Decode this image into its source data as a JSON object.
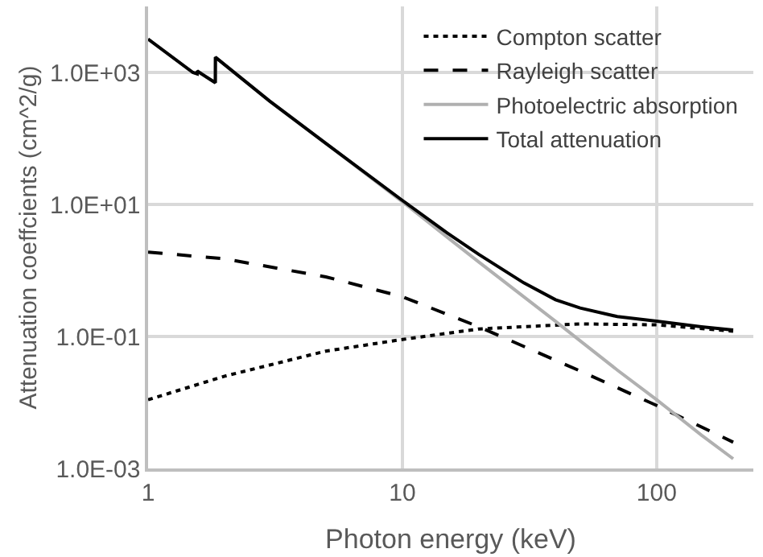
{
  "chart_data": {
    "type": "line",
    "xlabel": "Photon energy (keV)",
    "ylabel": "Attenuation coeffcients (cm^2/g)",
    "log": "xy",
    "grid": true,
    "legend": "top right",
    "xlim": [
      1,
      240
    ],
    "xticks": [
      1,
      10,
      100
    ],
    "ylim": [
      0.001,
      10000
    ],
    "yticks": [
      {
        "value": 0.001,
        "label": "1.0E-03"
      },
      {
        "value": 0.1,
        "label": "1.0E-01"
      },
      {
        "value": 10,
        "label": "1.0E+01"
      },
      {
        "value": 1000,
        "label": "1.0E+03"
      }
    ],
    "series": [
      {
        "name": "Compton scatter",
        "color": "#000000",
        "line_style": "dotted",
        "x": [
          1,
          2,
          5,
          10,
          20,
          50,
          100,
          200
        ],
        "values": [
          0.011,
          0.025,
          0.06,
          0.09,
          0.13,
          0.155,
          0.15,
          0.12
        ]
      },
      {
        "name": "Rayleigh scatter",
        "color": "#000000",
        "line_style": "dashed",
        "x": [
          1,
          2,
          5,
          10,
          20,
          50,
          100,
          200
        ],
        "values": [
          1.9,
          1.5,
          0.8,
          0.4,
          0.14,
          0.03,
          0.009,
          0.0025
        ]
      },
      {
        "name": "Photoelectric absorption",
        "color": "#b0b0b0",
        "line_style": "solid",
        "x": [
          1,
          1.5,
          1.559,
          1.56,
          1.838,
          1.84,
          3,
          5,
          10,
          15,
          20,
          30,
          40,
          50,
          70,
          100,
          150,
          200
        ],
        "values": [
          3200,
          1000,
          950,
          1050,
          700,
          1700,
          370,
          84,
          11,
          3.2,
          1.34,
          0.4,
          0.17,
          0.086,
          0.031,
          0.011,
          0.0032,
          0.0014
        ]
      },
      {
        "name": "Total attenuation",
        "color": "#000000",
        "line_style": "solid",
        "x": [
          1,
          1.5,
          1.559,
          1.56,
          1.838,
          1.84,
          3,
          5,
          10,
          15,
          20,
          30,
          40,
          50,
          70,
          100,
          150,
          200
        ],
        "values": [
          3200,
          1000,
          950,
          1050,
          700,
          1700,
          370,
          84,
          11.5,
          3.7,
          1.75,
          0.65,
          0.36,
          0.27,
          0.2,
          0.17,
          0.14,
          0.125
        ]
      }
    ]
  }
}
